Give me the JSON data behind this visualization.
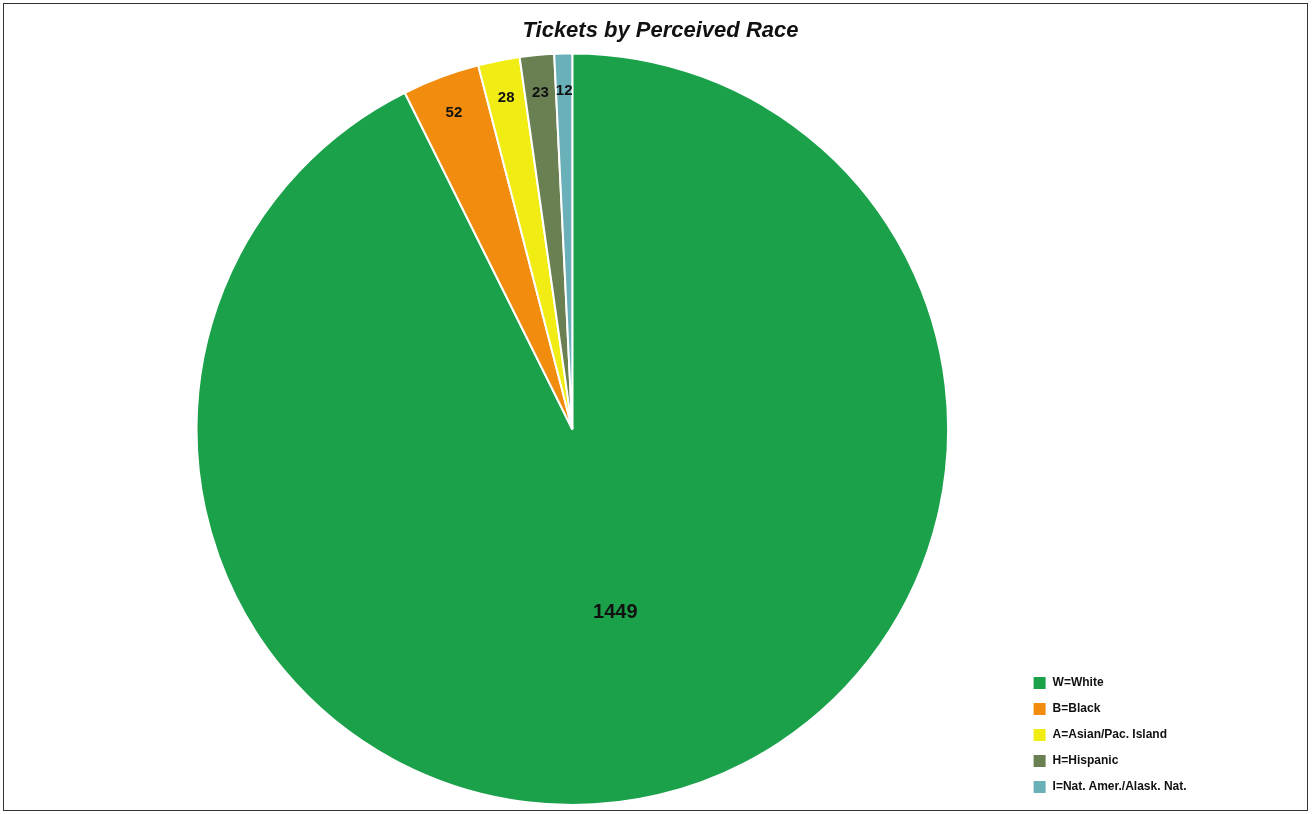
{
  "chart_data": {
    "type": "pie",
    "title": "Tickets by Perceived Race",
    "categories": [
      "W=White",
      "B=Black",
      "A=Asian/Pac. Island",
      "H=Hispanic",
      "I=Nat. Amer./Alask. Nat."
    ],
    "values": [
      1449,
      52,
      28,
      23,
      12
    ],
    "colors": [
      "#1aa14a",
      "#f28c0e",
      "#f0ec14",
      "#6a8052",
      "#6ab0b8"
    ],
    "data_labels": true,
    "legend": "bottom right"
  }
}
